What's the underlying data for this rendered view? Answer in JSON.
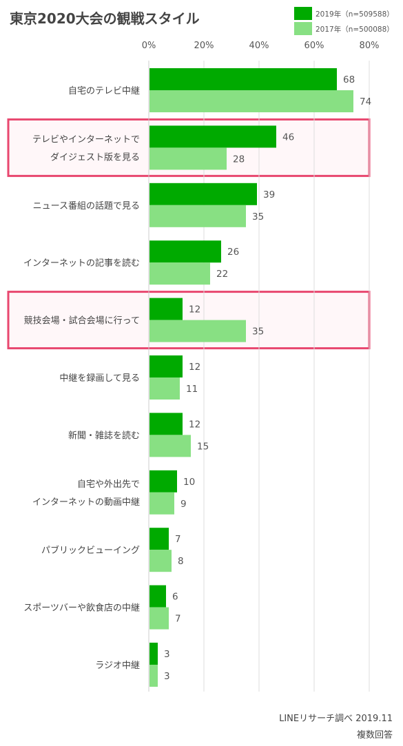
{
  "colors": {
    "series_2019": "#00aa00",
    "series_2017": "#88e083",
    "highlight_border": "#e8476f",
    "highlight_fill": "#fff7f9",
    "grid": "#dddddd"
  },
  "chart_data": {
    "type": "bar",
    "orientation": "horizontal",
    "title": "東京2020大会の観戦スタイル",
    "x_ticks": [
      "0%",
      "20%",
      "40%",
      "60%",
      "80%"
    ],
    "xlim": [
      0,
      80
    ],
    "grid": true,
    "legend_position": "top-right",
    "categories": [
      "自宅のテレビ中継",
      "テレビやインターネットで\nダイジェスト版を見る",
      "ニュース番組の話題で見る",
      "インターネットの記事を読む",
      "競技会場・試合会場に行って",
      "中継を録画して見る",
      "新聞・雑誌を読む",
      "自宅や外出先で\nインターネットの動画中継",
      "パブリックビューイング",
      "スポーツバーや飲食店の中継",
      "ラジオ中継"
    ],
    "highlighted": [
      1,
      4
    ],
    "series": [
      {
        "name": "2019年（n=509588）",
        "values": [
          68,
          46,
          39,
          26,
          12,
          12,
          12,
          10,
          7,
          6,
          3
        ]
      },
      {
        "name": "2017年（n=500088）",
        "values": [
          74,
          28,
          35,
          22,
          35,
          11,
          15,
          9,
          8,
          7,
          3
        ]
      }
    ],
    "notes": [
      "LINEリサーチ調べ 2019.11",
      "複数回答"
    ]
  }
}
